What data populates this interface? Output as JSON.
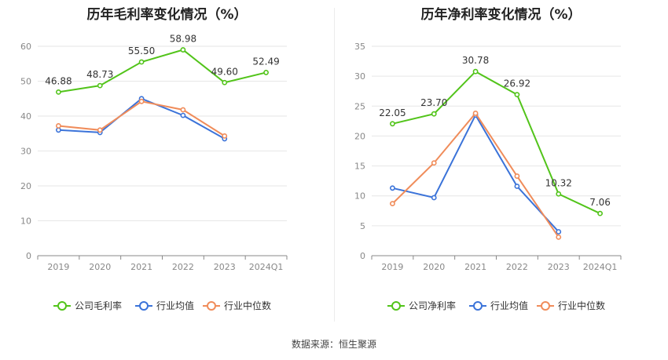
{
  "chart_data": [
    {
      "type": "line",
      "title": "历年毛利率变化情况（%）",
      "categories": [
        "2019",
        "2020",
        "2021",
        "2022",
        "2023",
        "2024Q1"
      ],
      "ylim": [
        0,
        60
      ],
      "yticks": [
        0,
        10,
        20,
        30,
        40,
        50,
        60
      ],
      "grid": true,
      "legend_position": "bottom",
      "series": [
        {
          "name": "公司毛利率",
          "color": "#52c41a",
          "values": [
            46.88,
            48.73,
            55.5,
            58.98,
            49.6,
            52.49
          ],
          "labels": [
            "46.88",
            "48.73",
            "55.50",
            "58.98",
            "49.60",
            "52.49"
          ]
        },
        {
          "name": "行业均值",
          "color": "#3b73d9",
          "values": [
            36.0,
            35.3,
            45.0,
            40.2,
            33.5,
            null
          ]
        },
        {
          "name": "行业中位数",
          "color": "#f08c5a",
          "values": [
            37.2,
            36.0,
            44.2,
            41.8,
            34.3,
            null
          ]
        }
      ]
    },
    {
      "type": "line",
      "title": "历年净利率变化情况（%）",
      "categories": [
        "2019",
        "2020",
        "2021",
        "2022",
        "2023",
        "2024Q1"
      ],
      "ylim": [
        0,
        35
      ],
      "yticks": [
        0,
        5,
        10,
        15,
        20,
        25,
        30,
        35
      ],
      "grid": true,
      "legend_position": "bottom",
      "series": [
        {
          "name": "公司净利率",
          "color": "#52c41a",
          "values": [
            22.05,
            23.7,
            30.78,
            26.92,
            10.32,
            7.06
          ],
          "labels": [
            "22.05",
            "23.70",
            "30.78",
            "26.92",
            "10.32",
            "7.06"
          ]
        },
        {
          "name": "行业均值",
          "color": "#3b73d9",
          "values": [
            11.3,
            9.7,
            23.5,
            11.6,
            4.0,
            null
          ]
        },
        {
          "name": "行业中位数",
          "color": "#f08c5a",
          "values": [
            8.7,
            15.5,
            23.8,
            13.3,
            3.1,
            null
          ]
        }
      ]
    }
  ],
  "source": "数据来源：恒生聚源"
}
